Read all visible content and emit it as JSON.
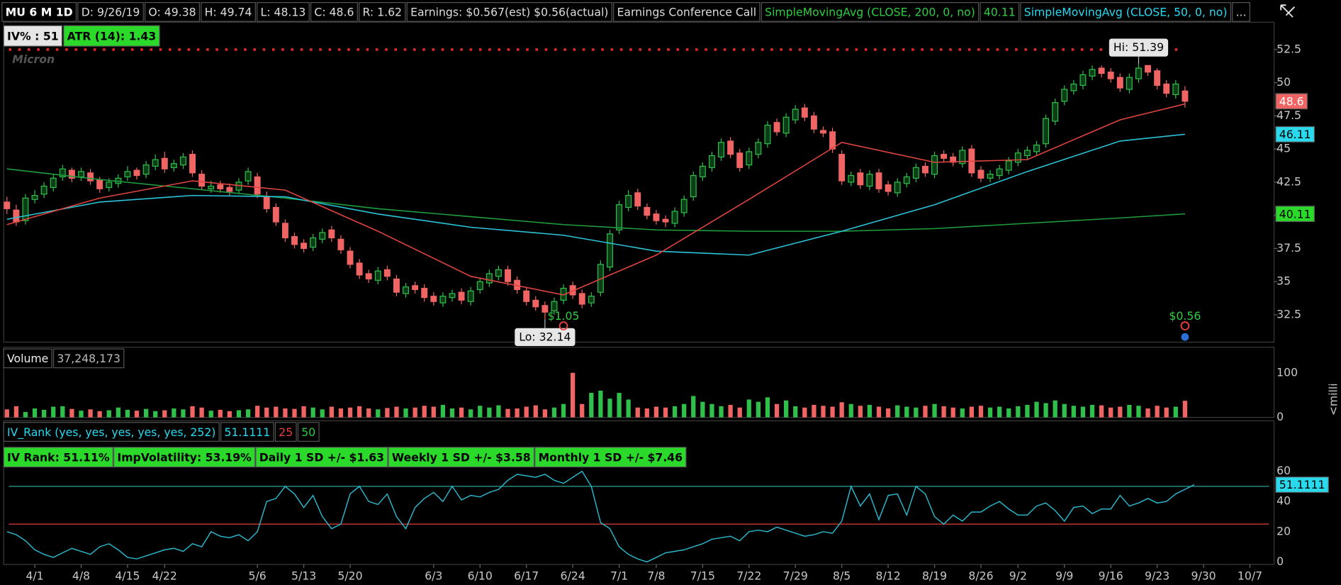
{
  "header": {
    "symbol": "MU 6 M 1D",
    "date": "D: 9/26/19",
    "open": "O: 49.38",
    "high": "H: 49.74",
    "low": "L: 48.13",
    "close": "C: 48.6",
    "range": "R: 1.62",
    "earnings": "Earnings: $0.567(est) $0.56(actual)",
    "conference": "Earnings Conference Call",
    "more": "..."
  },
  "chart_data": [
    {
      "type": "candlestick",
      "watermark": "Micron",
      "badges": [
        "IV% : 51",
        "ATR (14): 1.43"
      ],
      "xlim": [
        -0.35,
        136.6
      ],
      "ylim": [
        30.44,
        54.56
      ],
      "yticks": [
        32.5,
        35,
        37.5,
        40,
        42.5,
        45,
        47.5,
        50,
        52.5
      ],
      "up_color": "#2fbf4a",
      "down_color": "#f06464",
      "open": [
        41.0,
        40.4,
        39.6,
        41.2,
        41.6,
        42.1,
        42.9,
        43.4,
        42.9,
        43.2,
        42.7,
        42.1,
        42.4,
        42.9,
        43.4,
        43.1,
        43.7,
        44.3,
        43.6,
        43.8,
        44.6,
        43.1,
        42.0,
        42.3,
        42.1,
        41.9,
        42.6,
        42.9,
        41.4,
        40.6,
        39.4,
        38.4,
        37.9,
        37.6,
        38.2,
        38.9,
        38.2,
        37.3,
        36.4,
        35.6,
        35.1,
        35.9,
        35.2,
        34.1,
        34.7,
        34.5,
        33.9,
        33.4,
        33.8,
        34.2,
        33.5,
        34.4,
        34.9,
        35.4,
        35.9,
        35.1,
        34.3,
        33.6,
        33.2,
        32.8,
        33.6,
        34.7,
        34.1,
        33.4,
        34.2,
        36.1,
        38.9,
        40.6,
        41.7,
        40.6,
        40.1,
        39.7,
        39.4,
        40.2,
        41.4,
        42.9,
        43.6,
        44.4,
        45.6,
        44.7,
        43.8,
        44.6,
        45.4,
        47.0,
        46.2,
        47.2,
        48.1,
        47.5,
        46.4,
        46.3,
        44.6,
        42.5,
        43.2,
        42.2,
        43.2,
        42.3,
        41.7,
        42.4,
        42.8,
        43.7,
        43.1,
        44.6,
        44.4,
        43.9,
        45.0,
        43.4,
        42.8,
        43.0,
        43.4,
        44.0,
        44.5,
        44.8,
        45.4,
        47.1,
        48.6,
        49.4,
        49.8,
        50.5,
        51.1,
        50.8,
        50.4,
        49.5,
        50.3,
        51.3,
        50.9,
        49.9,
        49.1,
        49.38
      ],
      "high": [
        41.4,
        40.8,
        41.6,
        41.9,
        42.5,
        43.1,
        43.8,
        43.6,
        43.6,
        43.5,
        42.9,
        42.8,
        43.1,
        43.7,
        43.6,
        44.1,
        44.6,
        44.8,
        44.2,
        44.7,
        44.9,
        43.4,
        42.6,
        42.6,
        42.4,
        42.8,
        43.6,
        43.2,
        41.8,
        40.9,
        39.7,
        38.7,
        38.2,
        38.6,
        39.0,
        39.2,
        38.5,
        37.6,
        36.7,
        35.9,
        36.1,
        36.2,
        35.5,
        34.9,
        35.0,
        34.8,
        34.2,
        34.2,
        34.4,
        34.5,
        34.6,
        35.3,
        35.9,
        36.2,
        36.2,
        35.4,
        34.6,
        33.9,
        33.5,
        33.8,
        34.8,
        35.0,
        34.4,
        34.2,
        36.6,
        38.9,
        41.1,
        41.9,
        42.0,
        40.9,
        40.4,
        40.0,
        40.6,
        41.5,
        43.3,
        44.0,
        44.8,
        45.8,
        45.9,
        45.0,
        45.1,
        45.8,
        47.1,
        47.3,
        47.7,
        48.3,
        48.4,
        47.8,
        46.7,
        46.6,
        44.9,
        43.3,
        43.5,
        43.4,
        43.5,
        42.6,
        42.8,
        43.2,
        43.9,
        44.0,
        44.8,
        44.9,
        44.7,
        45.2,
        45.3,
        43.7,
        43.4,
        43.8,
        44.4,
        45.0,
        45.2,
        45.6,
        47.6,
        48.8,
        49.8,
        50.2,
        50.9,
        51.3,
        51.3,
        51.1,
        50.7,
        50.7,
        51.39,
        51.2,
        51.1,
        50.2,
        50.2,
        49.74
      ],
      "low": [
        40.1,
        39.2,
        39.3,
        40.9,
        41.3,
        41.8,
        42.6,
        42.5,
        42.6,
        42.3,
        41.7,
        41.8,
        42.1,
        42.6,
        42.7,
        42.8,
        43.4,
        43.2,
        43.3,
        43.5,
        42.9,
        41.9,
        41.7,
        41.7,
        41.5,
        41.6,
        42.3,
        41.3,
        40.2,
        39.2,
        38.0,
        37.5,
        37.2,
        37.3,
        37.9,
        38.0,
        37.1,
        36.0,
        35.2,
        34.9,
        34.8,
        35.1,
        33.9,
        33.8,
        34.1,
        33.5,
        33.2,
        33.1,
        33.5,
        33.3,
        33.2,
        34.1,
        34.6,
        35.1,
        34.7,
        34.1,
        33.2,
        32.8,
        32.14,
        32.5,
        33.3,
        33.7,
        33.0,
        33.1,
        33.9,
        35.8,
        38.6,
        40.3,
        40.4,
        39.7,
        39.3,
        39.1,
        39.1,
        39.9,
        41.1,
        42.6,
        43.3,
        44.1,
        44.3,
        43.3,
        43.5,
        44.3,
        45.1,
        46.0,
        45.9,
        46.9,
        47.1,
        46.2,
        45.9,
        44.7,
        42.3,
        42.2,
        42.0,
        41.9,
        41.7,
        41.5,
        41.4,
        42.1,
        42.5,
        42.9,
        42.8,
        44.0,
        43.7,
        43.6,
        42.9,
        42.5,
        42.5,
        42.7,
        43.1,
        43.7,
        44.2,
        44.5,
        45.1,
        46.8,
        48.3,
        49.1,
        49.5,
        50.2,
        50.4,
        50.0,
        49.3,
        49.2,
        50.0,
        50.5,
        49.5,
        48.9,
        48.8,
        48.13
      ],
      "close": [
        40.5,
        39.5,
        41.3,
        41.5,
        42.2,
        42.8,
        43.5,
        42.8,
        43.3,
        42.6,
        42.0,
        42.5,
        42.8,
        43.3,
        43.0,
        43.8,
        44.2,
        43.5,
        43.9,
        44.4,
        43.2,
        42.2,
        42.2,
        42.0,
        41.8,
        42.5,
        43.3,
        41.6,
        40.5,
        39.5,
        38.3,
        37.8,
        37.5,
        38.3,
        38.7,
        38.3,
        37.4,
        36.3,
        35.5,
        35.2,
        35.8,
        35.4,
        34.2,
        34.6,
        34.4,
        33.8,
        33.5,
        33.9,
        34.1,
        33.6,
        34.3,
        35.0,
        35.6,
        35.9,
        35.0,
        34.4,
        33.5,
        33.1,
        32.7,
        33.5,
        34.5,
        34.0,
        33.3,
        33.9,
        36.3,
        38.6,
        40.8,
        41.5,
        40.7,
        40.0,
        39.6,
        39.5,
        40.3,
        41.2,
        43.0,
        43.7,
        44.5,
        45.5,
        44.6,
        43.6,
        44.8,
        45.5,
        46.8,
        46.3,
        47.4,
        48.0,
        47.4,
        46.5,
        46.2,
        45.0,
        42.6,
        43.0,
        42.3,
        43.1,
        42.0,
        41.8,
        42.5,
        42.9,
        43.6,
        43.2,
        44.5,
        44.3,
        44.0,
        44.9,
        43.2,
        42.8,
        43.1,
        43.5,
        44.1,
        44.7,
        44.9,
        45.3,
        47.3,
        48.5,
        49.5,
        49.9,
        50.6,
        51.0,
        50.7,
        50.3,
        49.6,
        50.4,
        51.1,
        50.8,
        49.8,
        49.2,
        49.9,
        48.6
      ],
      "series": [
        {
          "name": "SimpleMovingAvg (CLOSE, 200, 0, no)",
          "color": "#1e9e3e",
          "x": [
            0,
            10,
            20,
            30,
            40,
            50,
            60,
            70,
            80,
            90,
            100,
            110,
            120,
            127
          ],
          "values": [
            43.5,
            42.7,
            42.0,
            41.3,
            40.5,
            39.9,
            39.3,
            38.9,
            38.8,
            38.8,
            39.0,
            39.4,
            39.8,
            40.11
          ]
        },
        {
          "name": "SimpleMovingAvg (CLOSE, 50, 0, no)",
          "color": "#2bc4d8",
          "x": [
            0,
            10,
            20,
            30,
            40,
            50,
            60,
            70,
            80,
            90,
            100,
            110,
            120,
            127
          ],
          "values": [
            39.7,
            41.0,
            41.5,
            41.4,
            40.1,
            39.1,
            38.5,
            37.3,
            37.0,
            38.8,
            40.8,
            43.3,
            45.6,
            46.11
          ]
        },
        {
          "color": "#e0453f",
          "x": [
            0,
            10,
            20,
            30,
            40,
            50,
            60,
            70,
            80,
            90,
            100,
            110,
            120,
            127
          ],
          "values": [
            39.3,
            41.3,
            42.6,
            41.9,
            38.8,
            35.4,
            34.0,
            37.0,
            41.2,
            45.5,
            44.0,
            44.2,
            47.2,
            48.4
          ]
        }
      ],
      "annotations": [
        {
          "text": "Hi: 51.39",
          "x": 122,
          "y": 51.39
        },
        {
          "text": "Lo: 32.14",
          "x": 58,
          "y": 32.14
        }
      ],
      "earnings": [
        {
          "x": 60,
          "label": "$1.05"
        },
        {
          "x": 127,
          "label": "$0.56"
        }
      ]
    },
    {
      "type": "bar",
      "title": "Volume",
      "current_label": "37,248,173",
      "axis_label": "<milli",
      "xlim": [
        -0.35,
        136.6
      ],
      "ylim": [
        0,
        107.5
      ],
      "yticks": [
        0,
        100
      ],
      "values": [
        18,
        25,
        12,
        20,
        17,
        24,
        25,
        19,
        15,
        18,
        14,
        16,
        22,
        17,
        15,
        19,
        14,
        16,
        20,
        18,
        25,
        22,
        15,
        17,
        14,
        16,
        18,
        26,
        22,
        24,
        20,
        19,
        25,
        22,
        18,
        24,
        20,
        22,
        25,
        20,
        18,
        21,
        24,
        20,
        22,
        26,
        24,
        28,
        20,
        22,
        18,
        26,
        22,
        27,
        19,
        20,
        24,
        27,
        18,
        22,
        30,
        100,
        30,
        55,
        60,
        42,
        55,
        40,
        22,
        20,
        24,
        22,
        25,
        30,
        48,
        35,
        30,
        25,
        28,
        22,
        40,
        35,
        45,
        30,
        38,
        25,
        22,
        28,
        26,
        24,
        34,
        30,
        26,
        28,
        24,
        20,
        27,
        24,
        22,
        26,
        30,
        25,
        22,
        20,
        24,
        26,
        22,
        24,
        20,
        25,
        28,
        35,
        32,
        38,
        30,
        26,
        24,
        28,
        27,
        22,
        24,
        28,
        26,
        20,
        26,
        22,
        24,
        37.248173
      ]
    },
    {
      "type": "line",
      "title": "IV_Rank (yes, yes, yes, yes, yes, 252)",
      "badges": [
        "IV Rank: 51.11%",
        "ImpVolatility: 53.19%",
        "Daily 1 SD +/- $1.63",
        "Weekly 1 SD +/- $3.58",
        "Monthly 1 SD +/- $7.46"
      ],
      "xlim": [
        -0.35,
        136.6
      ],
      "ylim": [
        -1.7,
        61.7
      ],
      "yticks": [
        0,
        20,
        40,
        60
      ],
      "levels": [
        {
          "value": 25,
          "color": "#e0403a"
        },
        {
          "value": 50,
          "color": "#2aa198"
        }
      ],
      "series": [
        {
          "color": "#2bb7cc",
          "values": [
            20,
            18,
            14,
            8,
            5,
            3,
            6,
            9,
            7,
            5,
            10,
            12,
            8,
            3,
            2,
            4,
            6,
            8,
            9,
            7,
            12,
            10,
            20,
            17,
            16,
            18,
            14,
            20,
            40,
            42,
            50,
            45,
            36,
            44,
            30,
            22,
            25,
            45,
            50,
            40,
            38,
            45,
            30,
            22,
            36,
            42,
            46,
            40,
            50,
            41,
            44,
            43,
            46,
            48,
            54,
            58,
            57,
            56,
            58,
            54,
            52,
            56,
            60,
            50,
            26,
            22,
            10,
            5,
            2,
            0,
            3,
            6,
            7,
            8,
            10,
            12,
            15,
            16,
            17,
            14,
            20,
            21,
            20,
            23,
            21,
            19,
            17,
            18,
            20,
            19,
            27,
            50,
            37,
            45,
            28,
            44,
            45,
            31,
            50,
            45,
            30,
            25,
            31,
            27,
            33,
            33,
            37,
            40,
            35,
            31,
            31,
            37,
            39,
            34,
            27,
            36,
            37,
            32,
            35,
            35,
            44,
            37,
            39,
            42,
            39,
            40,
            45,
            48,
            51.1111
          ]
        }
      ],
      "xticks": [
        {
          "value": 3,
          "label": "4/1"
        },
        {
          "value": 8,
          "label": "4/8"
        },
        {
          "value": 13,
          "label": "4/15"
        },
        {
          "value": 17,
          "label": "4/22"
        },
        {
          "value": 27,
          "label": "5/6"
        },
        {
          "value": 32,
          "label": "5/13"
        },
        {
          "value": 37,
          "label": "5/20"
        },
        {
          "value": 46,
          "label": "6/3"
        },
        {
          "value": 51,
          "label": "6/10"
        },
        {
          "value": 56,
          "label": "6/17"
        },
        {
          "value": 61,
          "label": "6/24"
        },
        {
          "value": 66,
          "label": "7/1"
        },
        {
          "value": 70,
          "label": "7/8"
        },
        {
          "value": 75,
          "label": "7/15"
        },
        {
          "value": 80,
          "label": "7/22"
        },
        {
          "value": 85,
          "label": "7/29"
        },
        {
          "value": 90,
          "label": "8/5"
        },
        {
          "value": 95,
          "label": "8/12"
        },
        {
          "value": 100,
          "label": "8/19"
        },
        {
          "value": 105,
          "label": "8/26"
        },
        {
          "value": 109,
          "label": "9/2"
        },
        {
          "value": 114,
          "label": "9/9"
        },
        {
          "value": 119,
          "label": "9/16"
        },
        {
          "value": 124,
          "label": "9/23"
        },
        {
          "value": 129,
          "label": "9/30"
        },
        {
          "value": 134,
          "label": "10/7"
        }
      ]
    }
  ]
}
